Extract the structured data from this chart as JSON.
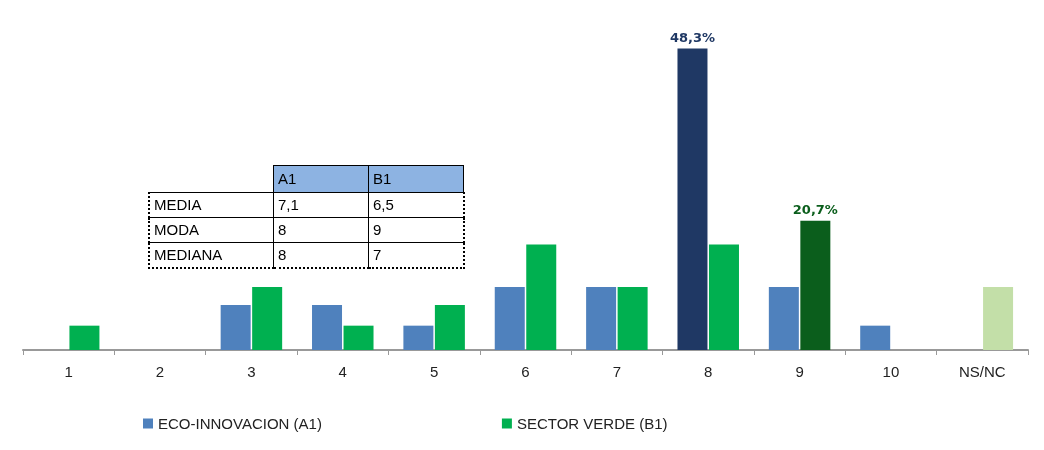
{
  "chart_data": {
    "type": "bar",
    "tick_labels": "x",
    "categories": [
      "1",
      "2",
      "3",
      "4",
      "5",
      "6",
      "7",
      "8",
      "9",
      "10",
      "NS/NC"
    ],
    "series": [
      {
        "name": "ECO-INNOVACION (A1)",
        "color": "#4f81bd",
        "colors": [
          "#4f81bd",
          "#4f81bd",
          "#4f81bd",
          "#4f81bd",
          "#4f81bd",
          "#4f81bd",
          "#4f81bd",
          "#1f3864",
          "#4f81bd",
          "#4f81bd",
          "#4f81bd"
        ],
        "values": [
          0,
          0,
          7.2,
          7.2,
          3.9,
          10.1,
          10.1,
          48.3,
          10.1,
          3.9,
          0
        ],
        "value_labels": [
          null,
          null,
          null,
          null,
          null,
          null,
          null,
          "48,3%",
          null,
          null,
          null
        ]
      },
      {
        "name": "SECTOR VERDE (B1)",
        "color": "#00b050",
        "colors": [
          "#00b050",
          "#00b050",
          "#00b050",
          "#00b050",
          "#00b050",
          "#00b050",
          "#00b050",
          "#00b050",
          "#0b5e1c",
          "#00b050",
          "#c3dfa8"
        ],
        "values": [
          3.9,
          0,
          10.1,
          3.9,
          7.2,
          16.9,
          10.1,
          16.9,
          20.7,
          0,
          10.1
        ],
        "value_labels": [
          null,
          null,
          null,
          null,
          null,
          null,
          null,
          null,
          "20,7%",
          null,
          null
        ]
      }
    ],
    "annotations": [
      "A1",
      "B1",
      "MEDIA",
      "7,1",
      "6,5",
      "MODA",
      "8",
      "9",
      "MEDIANA",
      "8",
      "7"
    ],
    "legend": "bottom left"
  }
}
